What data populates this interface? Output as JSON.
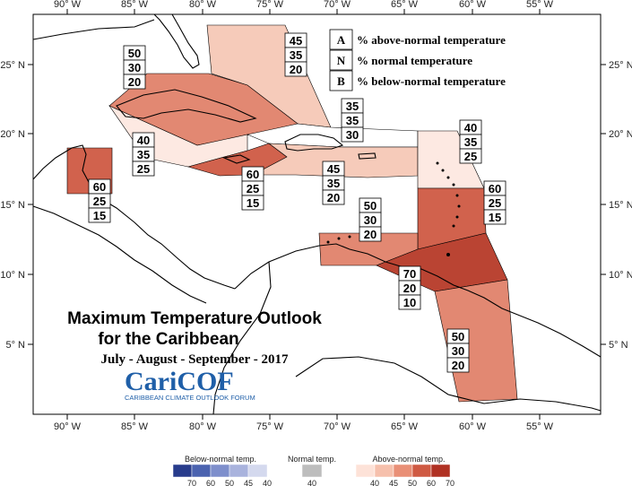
{
  "title": "Maximum Temperature Outlook",
  "title_line2": "for the Caribbean",
  "period": "July - August - September - 2017",
  "logo": {
    "name": "CariCOF",
    "subtitle": "CARIBBEAN CLIMATE OUTLOOK FORUM"
  },
  "axes": {
    "x_ticks": [
      "90° W",
      "85° W",
      "80° W",
      "75° W",
      "70° W",
      "65° W",
      "60° W",
      "55° W"
    ],
    "y_ticks": [
      "25° N",
      "20° N",
      "15° N",
      "10° N",
      "5° N"
    ]
  },
  "key": [
    {
      "letter": "A",
      "text": "% above-normal temperature"
    },
    {
      "letter": "N",
      "text": "% normal temperature"
    },
    {
      "letter": "B",
      "text": "% below-normal temperature"
    }
  ],
  "zones": [
    {
      "id": "bahamas",
      "probs": [
        "45",
        "35",
        "20"
      ],
      "color": "#f6c8b6"
    },
    {
      "id": "cuba",
      "probs": [
        "50",
        "30",
        "20"
      ],
      "color": "#e0826a"
    },
    {
      "id": "cayman-west",
      "probs": [
        "40",
        "35",
        "25"
      ],
      "color": "#fde8e0"
    },
    {
      "id": "jamaica",
      "probs": [
        "60",
        "25",
        "15"
      ],
      "color": "#cf5a43"
    },
    {
      "id": "hispaniola-north",
      "probs": [
        "35",
        "35",
        "30"
      ],
      "color": "#ffffff"
    },
    {
      "id": "hispaniola-pr",
      "probs": [
        "45",
        "35",
        "20"
      ],
      "color": "#f6c8b6"
    },
    {
      "id": "belize",
      "probs": [
        "60",
        "25",
        "15"
      ],
      "color": "#cf5a43"
    },
    {
      "id": "northern-leewards",
      "probs": [
        "40",
        "35",
        "25"
      ],
      "color": "#fde8e0"
    },
    {
      "id": "windwards",
      "probs": [
        "60",
        "25",
        "15"
      ],
      "color": "#cf5a43"
    },
    {
      "id": "abc-islands",
      "probs": [
        "50",
        "30",
        "20"
      ],
      "color": "#e0826a"
    },
    {
      "id": "trinidad",
      "probs": [
        "70",
        "20",
        "10"
      ],
      "color": "#b63a28"
    },
    {
      "id": "guianas",
      "probs": [
        "50",
        "30",
        "20"
      ],
      "color": "#e0826a"
    }
  ],
  "colorbar": {
    "below": {
      "label": "Below-normal temp.",
      "ticks": [
        "70",
        "60",
        "50",
        "45",
        "40"
      ],
      "colors": [
        "#283c8c",
        "#4b63b0",
        "#7e8fcc",
        "#a9b3dd",
        "#d4d9ee"
      ]
    },
    "normal": {
      "label": "Normal temp.",
      "ticks": [
        "40"
      ],
      "colors": [
        "#bdbdbd"
      ]
    },
    "above": {
      "label": "Above-normal temp.",
      "ticks": [
        "40",
        "45",
        "50",
        "60",
        "70"
      ],
      "colors": [
        "#fde2d8",
        "#f6c0ac",
        "#e98f76",
        "#cf5a43",
        "#b03123"
      ]
    }
  }
}
